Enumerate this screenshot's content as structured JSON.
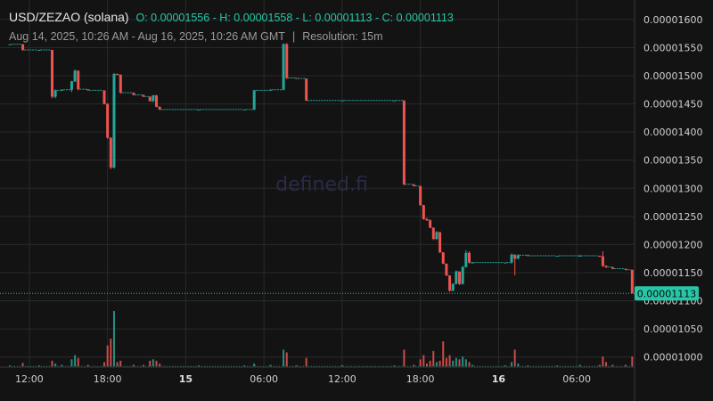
{
  "header": {
    "symbol": "USD/ZEZAO (solana)",
    "ohlc_label": "O: 0.00001556 - H: 0.00001558 - L: 0.00001113 - C: 0.00001113",
    "range": "Aug 14, 2025, 10:26 AM - Aug 16, 2025, 10:26 AM GMT",
    "separator": "|",
    "resolution": "Resolution: 15m"
  },
  "watermark": "defined.fi",
  "colors": {
    "background": "#131313",
    "up": "#26a69a",
    "down": "#ef5350",
    "grid": "#2a2a2a",
    "axis": "#3a3a3a",
    "last_price_bg": "#26c6a6"
  },
  "chart_data": {
    "type": "candlestick",
    "title": "USD/ZEZAO (solana)",
    "y_axis": {
      "ticks": [
        1.6e-05,
        1.55e-05,
        1.5e-05,
        1.45e-05,
        1.4e-05,
        1.35e-05,
        1.3e-05,
        1.25e-05,
        1.2e-05,
        1.15e-05,
        1.1e-05,
        1.05e-05,
        1e-05
      ],
      "tick_labels": [
        "0.00001600",
        "0.00001550",
        "0.00001500",
        "0.00001450",
        "0.00001400",
        "0.00001350",
        "0.00001300",
        "0.00001250",
        "0.00001200",
        "0.00001150",
        "0.00001100",
        "0.00001050",
        "0.00001000"
      ],
      "range": [
        9.82e-06,
        1.622e-05
      ],
      "position": "right"
    },
    "x_axis": {
      "ticks": [
        {
          "label": "12:00",
          "time": "2025-08-14T12:00",
          "bold": false
        },
        {
          "label": "18:00",
          "time": "2025-08-14T18:00",
          "bold": false
        },
        {
          "label": "15",
          "time": "2025-08-15T00:00",
          "bold": true
        },
        {
          "label": "06:00",
          "time": "2025-08-15T06:00",
          "bold": false
        },
        {
          "label": "12:00",
          "time": "2025-08-15T12:00",
          "bold": false
        },
        {
          "label": "18:00",
          "time": "2025-08-15T18:00",
          "bold": false
        },
        {
          "label": "16",
          "time": "2025-08-16T00:00",
          "bold": true
        },
        {
          "label": "06:00",
          "time": "2025-08-16T06:00",
          "bold": false
        }
      ],
      "range": [
        "2025-08-14T10:26",
        "2025-08-16T10:26"
      ]
    },
    "last_price": 1.113e-05,
    "last_price_label": "0.00001113",
    "grid": true,
    "candles": [
      {
        "t": "2025-08-14T10:30",
        "o": 1.556e-05,
        "h": 1.556e-05,
        "l": 1.556e-05,
        "c": 1.556e-05,
        "v": 0.3
      },
      {
        "t": "2025-08-14T11:30",
        "o": 1.556e-05,
        "h": 1.556e-05,
        "l": 1.544e-05,
        "c": 1.546e-05,
        "v": 1.2
      },
      {
        "t": "2025-08-14T12:45",
        "o": 1.546e-05,
        "h": 1.546e-05,
        "l": 1.546e-05,
        "c": 1.546e-05,
        "v": 0.3
      },
      {
        "t": "2025-08-14T13:45",
        "o": 1.546e-05,
        "h": 1.546e-05,
        "l": 1.46e-05,
        "c": 1.463e-05,
        "v": 2.0
      },
      {
        "t": "2025-08-14T14:00",
        "o": 1.463e-05,
        "h": 1.476e-05,
        "l": 1.46e-05,
        "c": 1.474e-05,
        "v": 1.0
      },
      {
        "t": "2025-08-14T14:30",
        "o": 1.474e-05,
        "h": 1.476e-05,
        "l": 1.474e-05,
        "c": 1.475e-05,
        "v": 0.5
      },
      {
        "t": "2025-08-14T15:15",
        "o": 1.475e-05,
        "h": 1.491e-05,
        "l": 1.471e-05,
        "c": 1.49e-05,
        "v": 2.5
      },
      {
        "t": "2025-08-14T15:30",
        "o": 1.49e-05,
        "h": 1.511e-05,
        "l": 1.489e-05,
        "c": 1.509e-05,
        "v": 4.0
      },
      {
        "t": "2025-08-14T15:45",
        "o": 1.509e-05,
        "h": 1.509e-05,
        "l": 1.474e-05,
        "c": 1.476e-05,
        "v": 3.0
      },
      {
        "t": "2025-08-14T16:30",
        "o": 1.476e-05,
        "h": 1.476e-05,
        "l": 1.474e-05,
        "c": 1.474e-05,
        "v": 0.5
      },
      {
        "t": "2025-08-14T17:45",
        "o": 1.474e-05,
        "h": 1.474e-05,
        "l": 1.449e-05,
        "c": 1.45e-05,
        "v": 1.5
      },
      {
        "t": "2025-08-14T18:00",
        "o": 1.45e-05,
        "h": 1.451e-05,
        "l": 1.388e-05,
        "c": 1.39e-05,
        "v": 7.5
      },
      {
        "t": "2025-08-14T18:15",
        "o": 1.39e-05,
        "h": 1.39e-05,
        "l": 1.334e-05,
        "c": 1.337e-05,
        "v": 10.0
      },
      {
        "t": "2025-08-14T18:30",
        "o": 1.337e-05,
        "h": 1.505e-05,
        "l": 1.335e-05,
        "c": 1.503e-05,
        "v": 20.0
      },
      {
        "t": "2025-08-14T18:45",
        "o": 1.503e-05,
        "h": 1.504e-05,
        "l": 1.501e-05,
        "c": 1.502e-05,
        "v": 1.5
      },
      {
        "t": "2025-08-14T19:00",
        "o": 1.502e-05,
        "h": 1.502e-05,
        "l": 1.468e-05,
        "c": 1.47e-05,
        "v": 2.0
      },
      {
        "t": "2025-08-14T20:00",
        "o": 1.47e-05,
        "h": 1.47e-05,
        "l": 1.465e-05,
        "c": 1.466e-05,
        "v": 0.5
      },
      {
        "t": "2025-08-14T20:45",
        "o": 1.466e-05,
        "h": 1.466e-05,
        "l": 1.462e-05,
        "c": 1.463e-05,
        "v": 0.5
      },
      {
        "t": "2025-08-14T21:15",
        "o": 1.463e-05,
        "h": 1.463e-05,
        "l": 1.454e-05,
        "c": 1.455e-05,
        "v": 2.0
      },
      {
        "t": "2025-08-14T21:30",
        "o": 1.455e-05,
        "h": 1.466e-05,
        "l": 1.453e-05,
        "c": 1.465e-05,
        "v": 2.5
      },
      {
        "t": "2025-08-14T21:45",
        "o": 1.465e-05,
        "h": 1.466e-05,
        "l": 1.444e-05,
        "c": 1.445e-05,
        "v": 2.0
      },
      {
        "t": "2025-08-14T22:00",
        "o": 1.445e-05,
        "h": 1.445e-05,
        "l": 1.439e-05,
        "c": 1.44e-05,
        "v": 1.0
      },
      {
        "t": "2025-08-15T01:00",
        "o": 1.44e-05,
        "h": 1.44e-05,
        "l": 1.44e-05,
        "c": 1.44e-05,
        "v": 0.3
      },
      {
        "t": "2025-08-15T04:30",
        "o": 1.44e-05,
        "h": 1.44e-05,
        "l": 1.44e-05,
        "c": 1.44e-05,
        "v": 0.3
      },
      {
        "t": "2025-08-15T05:15",
        "o": 1.44e-05,
        "h": 1.475e-05,
        "l": 1.439e-05,
        "c": 1.474e-05,
        "v": 1.0
      },
      {
        "t": "2025-08-15T06:30",
        "o": 1.474e-05,
        "h": 1.476e-05,
        "l": 1.474e-05,
        "c": 1.475e-05,
        "v": 0.5
      },
      {
        "t": "2025-08-15T07:30",
        "o": 1.475e-05,
        "h": 1.558e-05,
        "l": 1.474e-05,
        "c": 1.556e-05,
        "v": 6.0
      },
      {
        "t": "2025-08-15T07:45",
        "o": 1.556e-05,
        "h": 1.558e-05,
        "l": 1.494e-05,
        "c": 1.496e-05,
        "v": 5.0
      },
      {
        "t": "2025-08-15T08:30",
        "o": 1.496e-05,
        "h": 1.496e-05,
        "l": 1.495e-05,
        "c": 1.495e-05,
        "v": 0.3
      },
      {
        "t": "2025-08-15T09:15",
        "o": 1.495e-05,
        "h": 1.495e-05,
        "l": 1.455e-05,
        "c": 1.456e-05,
        "v": 3.0
      },
      {
        "t": "2025-08-15T12:00",
        "o": 1.456e-05,
        "h": 1.456e-05,
        "l": 1.456e-05,
        "c": 1.456e-05,
        "v": 0.3
      },
      {
        "t": "2025-08-15T16:00",
        "o": 1.456e-05,
        "h": 1.456e-05,
        "l": 1.456e-05,
        "c": 1.456e-05,
        "v": 0.3
      },
      {
        "t": "2025-08-15T16:45",
        "o": 1.456e-05,
        "h": 1.456e-05,
        "l": 1.305e-05,
        "c": 1.307e-05,
        "v": 6.0
      },
      {
        "t": "2025-08-15T17:30",
        "o": 1.307e-05,
        "h": 1.307e-05,
        "l": 1.303e-05,
        "c": 1.304e-05,
        "v": 0.5
      },
      {
        "t": "2025-08-15T18:00",
        "o": 1.304e-05,
        "h": 1.304e-05,
        "l": 1.269e-05,
        "c": 1.27e-05,
        "v": 2.5
      },
      {
        "t": "2025-08-15T18:15",
        "o": 1.27e-05,
        "h": 1.27e-05,
        "l": 1.244e-05,
        "c": 1.245e-05,
        "v": 4.0
      },
      {
        "t": "2025-08-15T18:30",
        "o": 1.245e-05,
        "h": 1.248e-05,
        "l": 1.242e-05,
        "c": 1.243e-05,
        "v": 1.0
      },
      {
        "t": "2025-08-15T18:45",
        "o": 1.243e-05,
        "h": 1.245e-05,
        "l": 1.229e-05,
        "c": 1.23e-05,
        "v": 2.0
      },
      {
        "t": "2025-08-15T19:00",
        "o": 1.23e-05,
        "h": 1.23e-05,
        "l": 1.208e-05,
        "c": 1.21e-05,
        "v": 5.5
      },
      {
        "t": "2025-08-15T19:15",
        "o": 1.21e-05,
        "h": 1.224e-05,
        "l": 1.208e-05,
        "c": 1.222e-05,
        "v": 1.5
      },
      {
        "t": "2025-08-15T19:30",
        "o": 1.222e-05,
        "h": 1.222e-05,
        "l": 1.185e-05,
        "c": 1.186e-05,
        "v": 2.0
      },
      {
        "t": "2025-08-15T19:45",
        "o": 1.186e-05,
        "h": 1.186e-05,
        "l": 1.165e-05,
        "c": 1.166e-05,
        "v": 9.0
      },
      {
        "t": "2025-08-15T20:00",
        "o": 1.166e-05,
        "h": 1.166e-05,
        "l": 1.144e-05,
        "c": 1.145e-05,
        "v": 3.0
      },
      {
        "t": "2025-08-15T20:15",
        "o": 1.145e-05,
        "h": 1.145e-05,
        "l": 1.116e-05,
        "c": 1.118e-05,
        "v": 4.0
      },
      {
        "t": "2025-08-15T20:30",
        "o": 1.118e-05,
        "h": 1.131e-05,
        "l": 1.117e-05,
        "c": 1.13e-05,
        "v": 2.0
      },
      {
        "t": "2025-08-15T20:45",
        "o": 1.13e-05,
        "h": 1.154e-05,
        "l": 1.129e-05,
        "c": 1.152e-05,
        "v": 3.0
      },
      {
        "t": "2025-08-15T21:00",
        "o": 1.152e-05,
        "h": 1.152e-05,
        "l": 1.128e-05,
        "c": 1.13e-05,
        "v": 2.5
      },
      {
        "t": "2025-08-15T21:15",
        "o": 1.13e-05,
        "h": 1.162e-05,
        "l": 1.129e-05,
        "c": 1.16e-05,
        "v": 3.5
      },
      {
        "t": "2025-08-15T21:30",
        "o": 1.16e-05,
        "h": 1.19e-05,
        "l": 1.159e-05,
        "c": 1.185e-05,
        "v": 2.5
      },
      {
        "t": "2025-08-15T21:45",
        "o": 1.185e-05,
        "h": 1.188e-05,
        "l": 1.166e-05,
        "c": 1.168e-05,
        "v": 1.5
      },
      {
        "t": "2025-08-15T22:00",
        "o": 1.168e-05,
        "h": 1.169e-05,
        "l": 1.167e-05,
        "c": 1.168e-05,
        "v": 0.5
      },
      {
        "t": "2025-08-16T00:30",
        "o": 1.168e-05,
        "h": 1.168e-05,
        "l": 1.168e-05,
        "c": 1.168e-05,
        "v": 0.3
      },
      {
        "t": "2025-08-16T01:00",
        "o": 1.168e-05,
        "h": 1.184e-05,
        "l": 1.166e-05,
        "c": 1.182e-05,
        "v": 1.5
      },
      {
        "t": "2025-08-16T01:15",
        "o": 1.182e-05,
        "h": 1.182e-05,
        "l": 1.145e-05,
        "c": 1.175e-05,
        "v": 6.0
      },
      {
        "t": "2025-08-16T01:30",
        "o": 1.175e-05,
        "h": 1.183e-05,
        "l": 1.174e-05,
        "c": 1.181e-05,
        "v": 1.0
      },
      {
        "t": "2025-08-16T02:15",
        "o": 1.181e-05,
        "h": 1.182e-05,
        "l": 1.18e-05,
        "c": 1.18e-05,
        "v": 0.3
      },
      {
        "t": "2025-08-16T04:30",
        "o": 1.18e-05,
        "h": 1.18e-05,
        "l": 1.18e-05,
        "c": 1.18e-05,
        "v": 0.3
      },
      {
        "t": "2025-08-16T06:15",
        "o": 1.18e-05,
        "h": 1.182e-05,
        "l": 1.18e-05,
        "c": 1.18e-05,
        "v": 0.5
      },
      {
        "t": "2025-08-16T07:45",
        "o": 1.18e-05,
        "h": 1.18e-05,
        "l": 1.178e-05,
        "c": 1.179e-05,
        "v": 0.5
      },
      {
        "t": "2025-08-16T08:00",
        "o": 1.179e-05,
        "h": 1.188e-05,
        "l": 1.16e-05,
        "c": 1.162e-05,
        "v": 3.5
      },
      {
        "t": "2025-08-16T08:15",
        "o": 1.162e-05,
        "h": 1.163e-05,
        "l": 1.158e-05,
        "c": 1.16e-05,
        "v": 1.5
      },
      {
        "t": "2025-08-16T08:45",
        "o": 1.16e-05,
        "h": 1.16e-05,
        "l": 1.156e-05,
        "c": 1.157e-05,
        "v": 0.5
      },
      {
        "t": "2025-08-16T09:45",
        "o": 1.157e-05,
        "h": 1.157e-05,
        "l": 1.154e-05,
        "c": 1.155e-05,
        "v": 0.5
      },
      {
        "t": "2025-08-16T10:15",
        "o": 1.155e-05,
        "h": 1.155e-05,
        "l": 1.113e-05,
        "c": 1.113e-05,
        "v": 3.5
      }
    ]
  }
}
